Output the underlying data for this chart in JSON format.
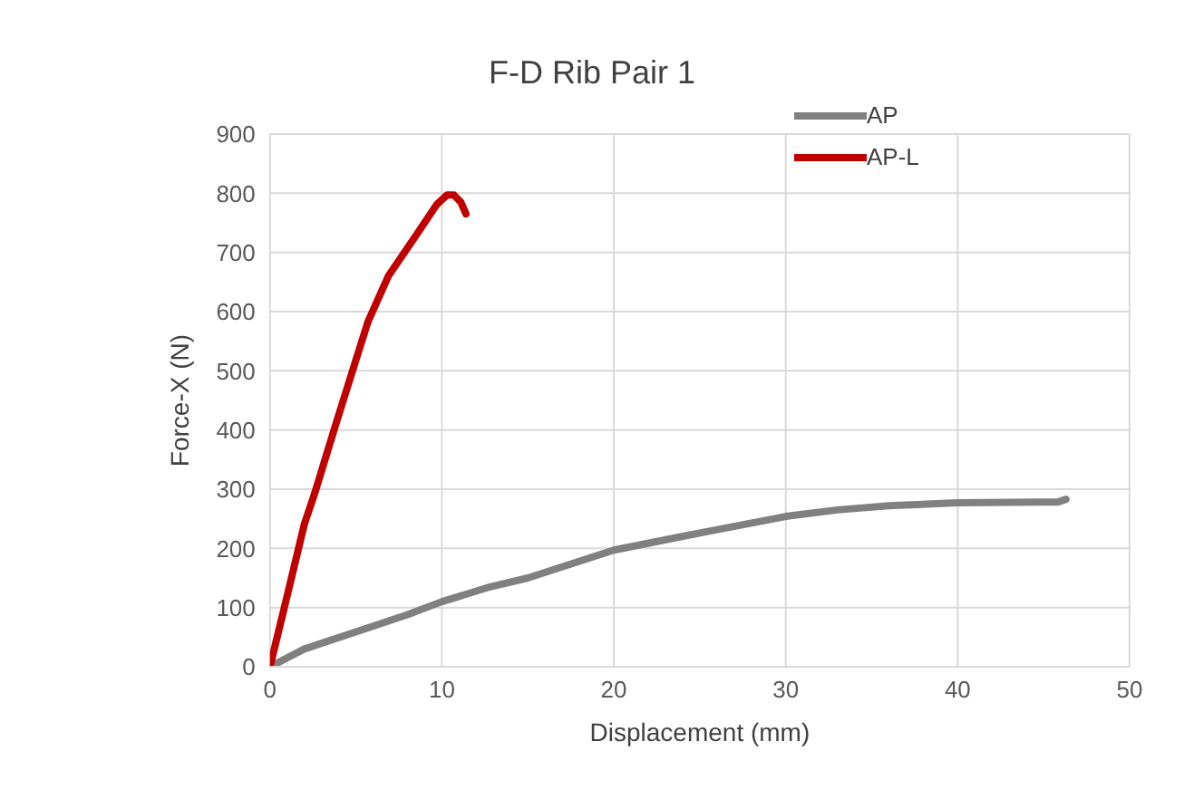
{
  "chart_data": {
    "type": "line",
    "title": "F-D Rib Pair 1",
    "xlabel": "Displacement (mm)",
    "ylabel": "Force-X (N)",
    "xlim": [
      0,
      50
    ],
    "xticks": [
      0,
      10,
      20,
      30,
      40,
      50
    ],
    "ylim": [
      0,
      900
    ],
    "yticks": [
      0,
      100,
      200,
      300,
      400,
      500,
      600,
      700,
      800,
      900
    ],
    "grid": true,
    "legend": "top right",
    "marker": "none",
    "line_style": "solid",
    "series": [
      {
        "name": "AP",
        "color": "#808080",
        "x": [
          0,
          2,
          5,
          8,
          10,
          12.8,
          15,
          20,
          25,
          30,
          33,
          36,
          40,
          44.7,
          45.8,
          46.3
        ],
        "values": [
          0,
          30,
          59,
          88,
          110,
          135,
          150,
          197,
          226,
          254,
          265,
          272,
          277,
          278,
          278,
          283
        ]
      },
      {
        "name": "AP-L",
        "color": "#c00000",
        "x": [
          0,
          1,
          2,
          2.6,
          3.8,
          4.8,
          5.7,
          6.9,
          8.5,
          9.7,
          10.3,
          10.7,
          11.1,
          11.4
        ],
        "values": [
          0,
          120,
          241,
          293,
          407,
          500,
          583,
          661,
          729,
          781,
          797,
          797,
          785,
          765
        ]
      }
    ]
  }
}
